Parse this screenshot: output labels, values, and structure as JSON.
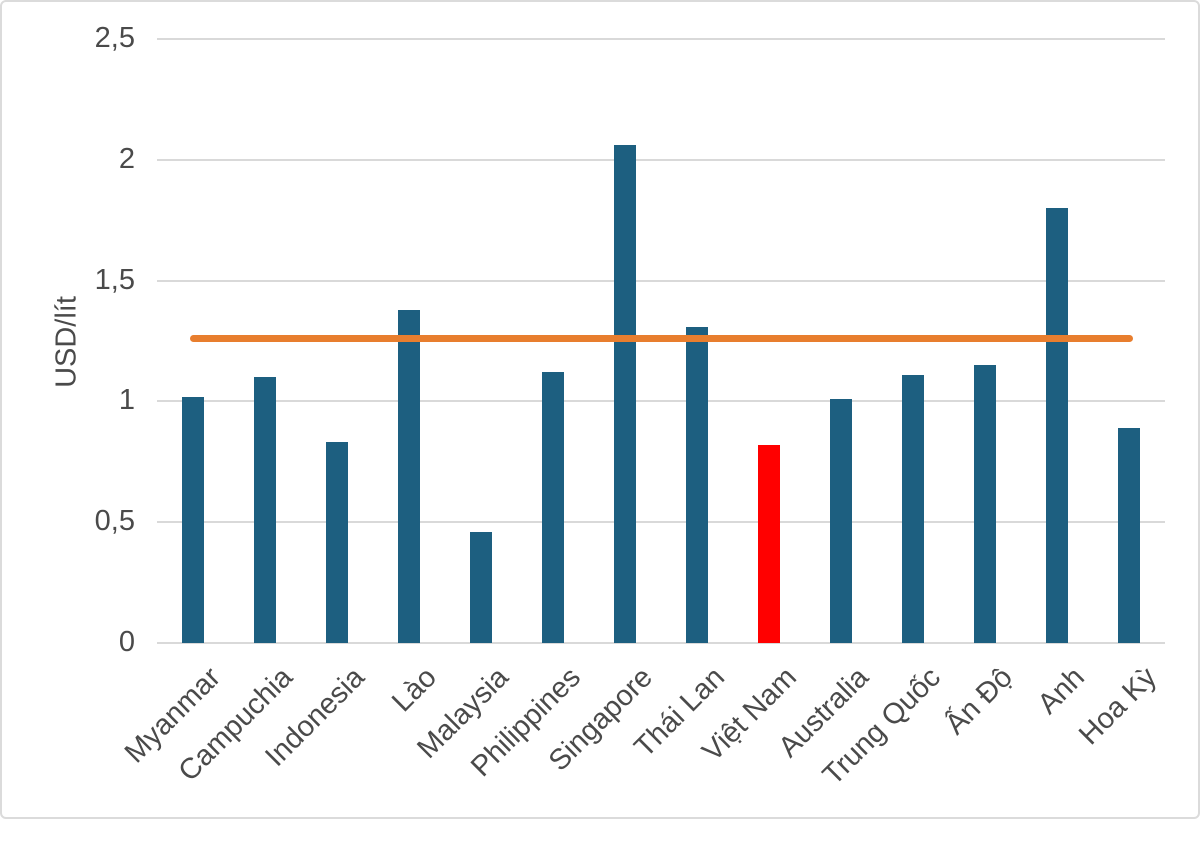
{
  "chart_data": {
    "type": "bar",
    "title": "",
    "xlabel": "",
    "ylabel": "USD/lít",
    "categories": [
      "Myanmar",
      "Campuchia",
      "Indonesia",
      "Lào",
      "Malaysia",
      "Philippines",
      "Singapore",
      "Thái Lan",
      "Việt Nam",
      "Australia",
      "Trung Quốc",
      "Ấn Độ",
      "Anh",
      "Hoa Kỳ"
    ],
    "values": [
      1.02,
      1.1,
      0.83,
      1.38,
      0.46,
      1.12,
      2.06,
      1.31,
      0.82,
      1.01,
      1.11,
      1.15,
      1.8,
      0.89
    ],
    "highlight_category": "Việt Nam",
    "reference_line": {
      "value": 1.26,
      "series_hint": "horizontal line across all categories"
    },
    "y_ticks": {
      "values": [
        0,
        0.5,
        1,
        1.5,
        2,
        2.5
      ],
      "labels": [
        "0",
        "0,5",
        "1",
        "1,5",
        "2",
        "2,5"
      ]
    },
    "ylim": [
      0,
      2.5
    ],
    "grid": true,
    "legend": "none",
    "colors": {
      "bar": "#1D5F80",
      "highlight_bar": "#FF0000",
      "reference_line": "#E87E2E",
      "gridline": "#D9D9D9",
      "text": "#4A4A4A"
    }
  }
}
